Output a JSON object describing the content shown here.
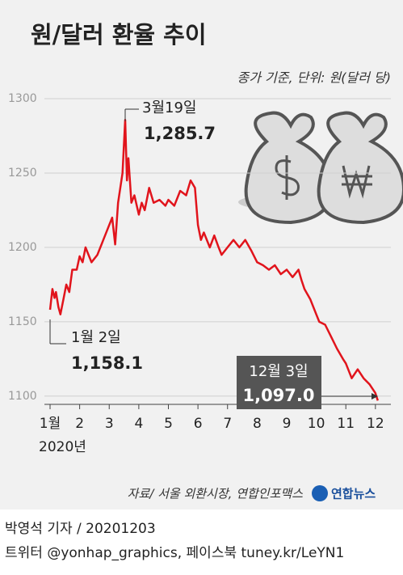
{
  "chart_data": {
    "type": "line",
    "title": "원/달러 환율 추이",
    "subtitle": "종가 기준, 단위: 원(달러 당)",
    "x_axis_note": "2020년",
    "source": "자료/ 서울 외환시장, 연합인포맥스",
    "color": "#e1141c",
    "x": [
      1.0,
      1.08,
      1.15,
      1.2,
      1.28,
      1.35,
      1.45,
      1.55,
      1.65,
      1.75,
      1.9,
      2.0,
      2.1,
      2.2,
      2.4,
      2.6,
      2.8,
      3.0,
      3.1,
      3.2,
      3.3,
      3.45,
      3.54,
      3.6,
      3.65,
      3.75,
      3.85,
      4.0,
      4.1,
      4.2,
      4.35,
      4.5,
      4.7,
      4.9,
      5.0,
      5.2,
      5.4,
      5.6,
      5.75,
      5.9,
      6.0,
      6.1,
      6.2,
      6.4,
      6.55,
      6.7,
      6.8,
      7.0,
      7.2,
      7.4,
      7.6,
      7.8,
      8.0,
      8.2,
      8.4,
      8.6,
      8.8,
      9.0,
      9.2,
      9.4,
      9.5,
      9.6,
      9.8,
      10.0,
      10.1,
      10.3,
      10.5,
      10.7,
      10.9,
      11.0,
      11.2,
      11.4,
      11.6,
      11.8,
      12.0,
      12.08
    ],
    "values": [
      1158.1,
      1172,
      1166,
      1170,
      1160,
      1155,
      1165,
      1175,
      1170,
      1185,
      1185,
      1194,
      1190,
      1200,
      1190,
      1195,
      1205,
      1215,
      1220,
      1202,
      1230,
      1250,
      1285.7,
      1245,
      1260,
      1230,
      1235,
      1222,
      1230,
      1225,
      1240,
      1230,
      1232,
      1228,
      1232,
      1228,
      1238,
      1235,
      1245,
      1240,
      1215,
      1205,
      1210,
      1200,
      1208,
      1200,
      1195,
      1200,
      1205,
      1200,
      1205,
      1198,
      1190,
      1188,
      1185,
      1188,
      1182,
      1185,
      1180,
      1185,
      1178,
      1172,
      1165,
      1155,
      1150,
      1148,
      1140,
      1132,
      1125,
      1122,
      1112,
      1118,
      1112,
      1108,
      1102,
      1097.0
    ],
    "xlim": [
      1,
      12.25
    ],
    "xticks": [
      {
        "value": 1,
        "label": "1월"
      },
      2,
      3,
      4,
      5,
      6,
      7,
      8,
      9,
      10,
      11,
      12
    ],
    "ylim": [
      1095,
      1300
    ],
    "yticks": [
      1100,
      1150,
      1200,
      1250,
      1300
    ],
    "grid": true,
    "annotations": [
      {
        "date": "3월19일",
        "value_label": "1,285.7"
      },
      {
        "date": "1월 2일",
        "value_label": "1,158.1"
      },
      {
        "date": "12월 3일",
        "value_label": "1,097.0"
      }
    ]
  },
  "footer": {
    "logo": "연합뉴스",
    "byline": "박영석 기자 / 20201203",
    "social": "트위터 @yonhap_graphics, 페이스북 tuney.kr/LeYN1"
  }
}
